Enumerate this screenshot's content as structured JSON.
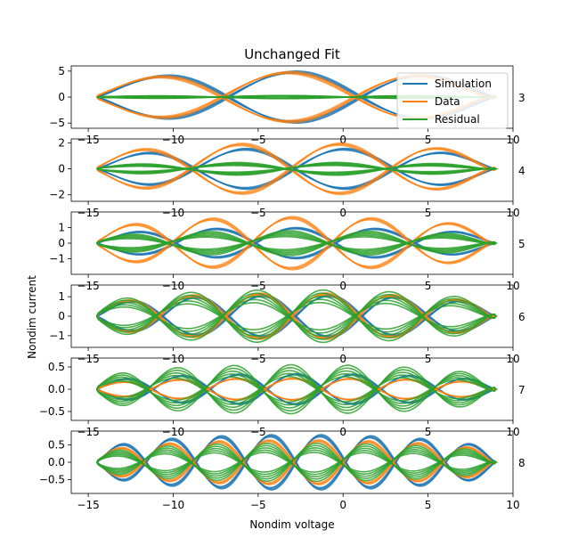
{
  "chart_data": {
    "type": "line",
    "title": "Unchanged Fit",
    "xlabel": "Nondim voltage",
    "ylabel": "Nondim current",
    "xlim": [
      -16,
      10
    ],
    "x_ticks": [
      -15,
      -10,
      -5,
      0,
      5,
      10
    ],
    "x_tick_labels": [
      "−15",
      "−10",
      "−5",
      "0",
      "5",
      "10"
    ],
    "legend": {
      "location": "upper-right of first panel",
      "entries": [
        "Simulation",
        "Data",
        "Residual"
      ]
    },
    "colors": {
      "Simulation": "#1f77b4",
      "Data": "#ff7f0e",
      "Residual": "#2ca02c"
    },
    "voltage_range": [
      -14.5,
      9.0
    ],
    "panels": [
      {
        "harmonic": "3",
        "ylim": [
          -6,
          6
        ],
        "y_ticks": [
          -5,
          0,
          5
        ],
        "y_tick_labels": [
          "−5",
          "0",
          "5"
        ],
        "series": [
          {
            "name": "Simulation",
            "amplitude": 5.0,
            "cycles": 1.5
          },
          {
            "name": "Data",
            "amplitude": 4.9,
            "cycles": 1.5
          },
          {
            "name": "Residual",
            "amplitude": 0.3,
            "cycles": 1.5
          }
        ]
      },
      {
        "harmonic": "4",
        "ylim": [
          -2.5,
          2.3
        ],
        "y_ticks": [
          -2,
          0,
          2
        ],
        "y_tick_labels": [
          "−2",
          "0",
          "2"
        ],
        "series": [
          {
            "name": "Simulation",
            "amplitude": 1.6,
            "cycles": 2.0
          },
          {
            "name": "Data",
            "amplitude": 2.0,
            "cycles": 2.0
          },
          {
            "name": "Residual",
            "amplitude": 0.5,
            "cycles": 2.0
          }
        ]
      },
      {
        "harmonic": "5",
        "ylim": [
          -2.0,
          2.0
        ],
        "y_ticks": [
          -1,
          0,
          1
        ],
        "y_tick_labels": [
          "−1",
          "0",
          "1"
        ],
        "series": [
          {
            "name": "Simulation",
            "amplitude": 1.0,
            "cycles": 2.5
          },
          {
            "name": "Data",
            "amplitude": 1.7,
            "cycles": 2.5
          },
          {
            "name": "Residual",
            "amplitude": 0.8,
            "cycles": 2.5
          }
        ]
      },
      {
        "harmonic": "6",
        "ylim": [
          -1.6,
          1.6
        ],
        "y_ticks": [
          -1,
          0,
          1
        ],
        "y_tick_labels": [
          "−1",
          "0",
          "1"
        ],
        "series": [
          {
            "name": "Simulation",
            "amplitude": 1.1,
            "cycles": 3.0
          },
          {
            "name": "Data",
            "amplitude": 1.2,
            "cycles": 3.0
          },
          {
            "name": "Residual",
            "amplitude": 1.35,
            "cycles": 3.0
          }
        ]
      },
      {
        "harmonic": "7",
        "ylim": [
          -0.7,
          0.7
        ],
        "y_ticks": [
          -0.5,
          0.0,
          0.5
        ],
        "y_tick_labels": [
          "−0.5",
          "0.0",
          "0.5"
        ],
        "series": [
          {
            "name": "Simulation",
            "amplitude": 0.35,
            "cycles": 3.5
          },
          {
            "name": "Data",
            "amplitude": 0.25,
            "cycles": 3.5
          },
          {
            "name": "Residual",
            "amplitude": 0.55,
            "cycles": 3.5
          }
        ]
      },
      {
        "harmonic": "8",
        "ylim": [
          -0.9,
          0.9
        ],
        "y_ticks": [
          -0.5,
          0.0,
          0.5
        ],
        "y_tick_labels": [
          "−0.5",
          "0.0",
          "0.5"
        ],
        "series": [
          {
            "name": "Simulation",
            "amplitude": 0.8,
            "cycles": 4.0
          },
          {
            "name": "Data",
            "amplitude": 0.65,
            "cycles": 4.0
          },
          {
            "name": "Residual",
            "amplitude": 0.55,
            "cycles": 4.0
          }
        ]
      }
    ]
  }
}
